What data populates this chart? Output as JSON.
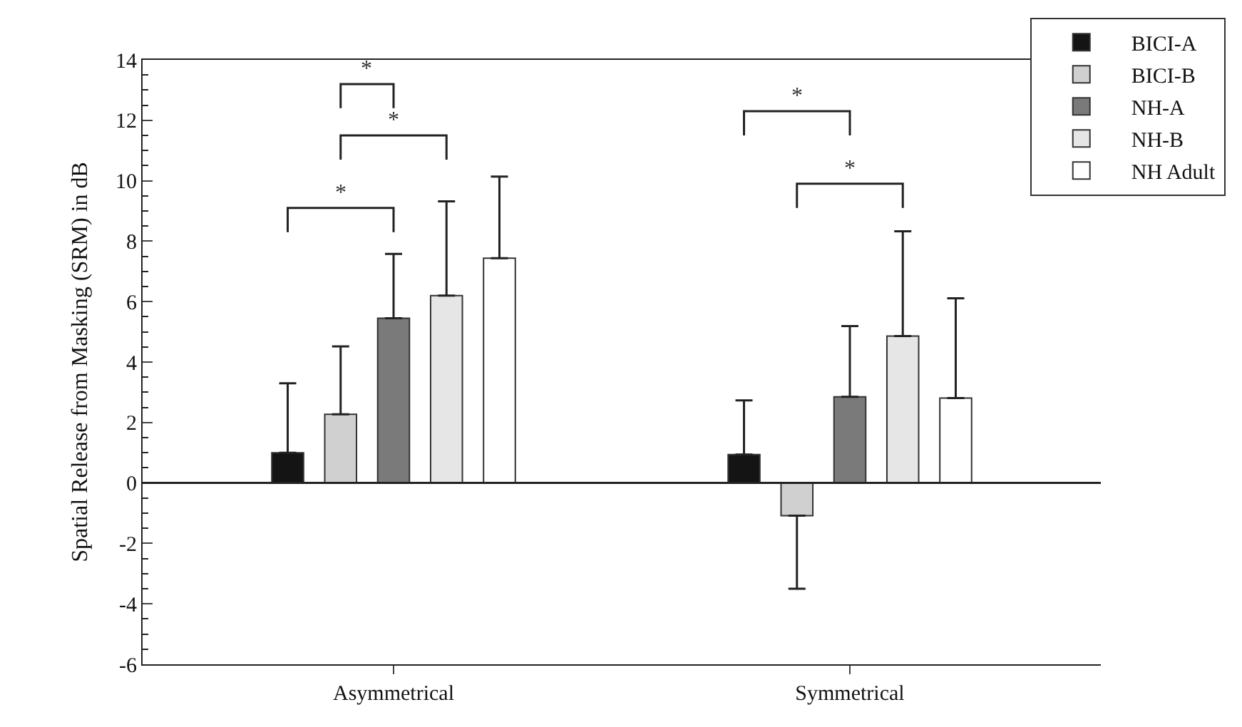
{
  "chart_data": {
    "type": "bar",
    "ylabel": "Spatial Release from Masking (SRM) in dB",
    "categories": [
      "Asymmetrical",
      "Symmetrical"
    ],
    "series": [
      {
        "name": "BICI-A",
        "color": "#141414",
        "values": [
          1.0,
          0.94
        ],
        "errors": [
          [
            1.0,
            3.3
          ],
          [
            0.94,
            2.73
          ]
        ]
      },
      {
        "name": "BICI-B",
        "color": "#d0d0d0",
        "values": [
          2.27,
          -1.08
        ],
        "errors": [
          [
            2.27,
            4.52
          ],
          [
            -3.5,
            -1.08
          ]
        ]
      },
      {
        "name": "NH-A",
        "color": "#7a7a7a",
        "values": [
          5.45,
          2.85
        ],
        "errors": [
          [
            5.45,
            7.58
          ],
          [
            2.85,
            5.19
          ]
        ]
      },
      {
        "name": "NH-B",
        "color": "#e6e6e6",
        "values": [
          6.2,
          4.86
        ],
        "errors": [
          [
            6.2,
            9.32
          ],
          [
            4.86,
            8.33
          ]
        ]
      },
      {
        "name": "NH Adult",
        "color": "#ffffff",
        "values": [
          7.44,
          2.81
        ],
        "errors": [
          [
            7.44,
            10.14
          ],
          [
            2.81,
            6.11
          ]
        ]
      }
    ],
    "ylim": [
      -6,
      14
    ],
    "yticks": [
      -6,
      -4,
      -2,
      0,
      2,
      4,
      6,
      8,
      10,
      12,
      14
    ],
    "annotations": [
      "*",
      "*",
      "*",
      "*",
      "*"
    ],
    "ref_lines": [
      {
        "axis": "y",
        "value": 0,
        "color": "#222222"
      }
    ],
    "legend": "top right"
  }
}
